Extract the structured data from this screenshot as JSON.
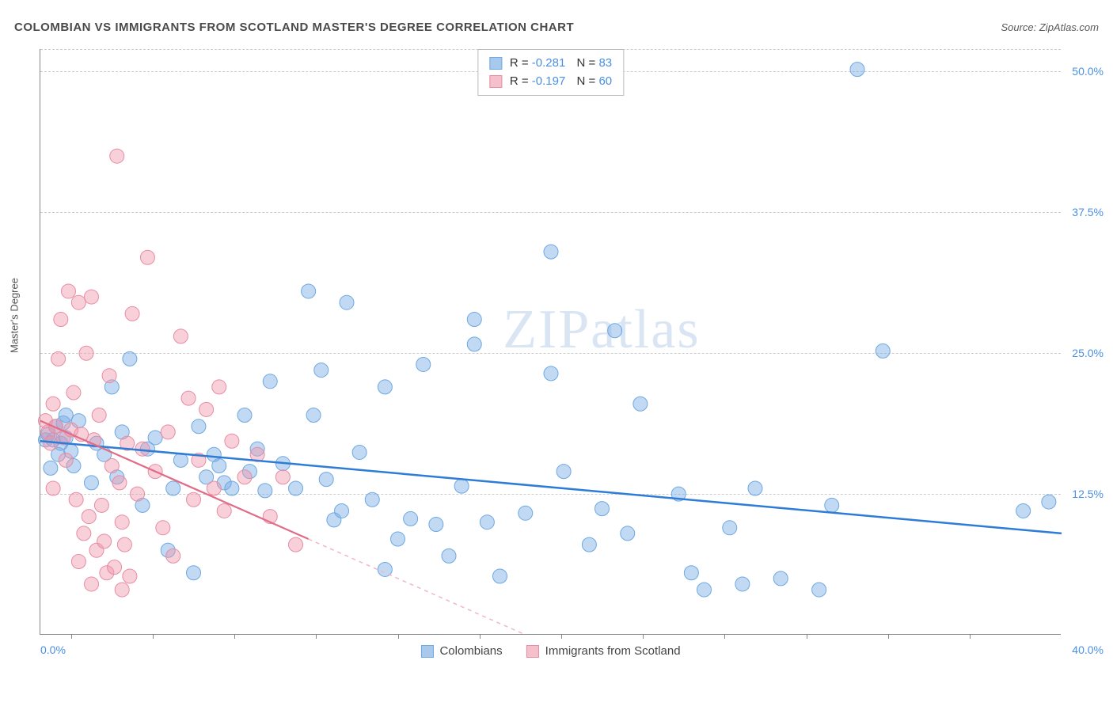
{
  "header": {
    "title": "COLOMBIAN VS IMMIGRANTS FROM SCOTLAND MASTER'S DEGREE CORRELATION CHART",
    "source_prefix": "Source: ",
    "source_name": "ZipAtlas.com"
  },
  "chart": {
    "type": "scatter",
    "ylabel": "Master's Degree",
    "watermark": "ZIPatlas",
    "background_color": "#ffffff",
    "grid_color": "#cccccc",
    "axis_color": "#888888",
    "xlim": [
      0,
      40
    ],
    "ylim": [
      0,
      52
    ],
    "xtick_labels": {
      "left": "0.0%",
      "right": "40.0%"
    },
    "xtick_positions_pct": [
      3,
      11,
      19,
      27,
      35,
      43,
      51,
      59,
      67,
      75,
      83,
      91
    ],
    "yticks": [
      {
        "value": 50.0,
        "label": "50.0%"
      },
      {
        "value": 37.5,
        "label": "37.5%"
      },
      {
        "value": 25.0,
        "label": "25.0%"
      },
      {
        "value": 12.5,
        "label": "12.5%"
      }
    ],
    "series": [
      {
        "key": "colombians",
        "label": "Colombians",
        "color_fill": "rgba(120,170,230,0.45)",
        "color_stroke": "#6ea8e0",
        "marker_radius": 9,
        "trend": {
          "x1": 0,
          "y1": 17.2,
          "x2": 40,
          "y2": 9.0,
          "color": "#2e7cd6",
          "width": 2.5,
          "dash": "none"
        },
        "stats": {
          "R": "-0.281",
          "N": "83"
        },
        "points": [
          [
            0.2,
            17.3
          ],
          [
            0.3,
            17.8
          ],
          [
            0.4,
            14.8
          ],
          [
            0.5,
            17.3
          ],
          [
            0.6,
            18.5
          ],
          [
            0.7,
            16.0
          ],
          [
            0.8,
            17.0
          ],
          [
            0.9,
            18.8
          ],
          [
            1.0,
            17.5
          ],
          [
            1.2,
            16.3
          ],
          [
            1.3,
            15.0
          ],
          [
            1.5,
            19.0
          ],
          [
            2.0,
            13.5
          ],
          [
            2.2,
            17.0
          ],
          [
            2.5,
            16.0
          ],
          [
            2.8,
            22.0
          ],
          [
            3.0,
            14.0
          ],
          [
            3.2,
            18.0
          ],
          [
            3.5,
            24.5
          ],
          [
            4.0,
            11.5
          ],
          [
            4.2,
            16.5
          ],
          [
            4.5,
            17.5
          ],
          [
            5.0,
            7.5
          ],
          [
            5.2,
            13.0
          ],
          [
            5.5,
            15.5
          ],
          [
            6.0,
            5.5
          ],
          [
            6.2,
            18.5
          ],
          [
            6.5,
            14.0
          ],
          [
            6.8,
            16.0
          ],
          [
            7.0,
            15.0
          ],
          [
            7.2,
            13.5
          ],
          [
            7.5,
            13.0
          ],
          [
            8.0,
            19.5
          ],
          [
            8.2,
            14.5
          ],
          [
            8.5,
            16.5
          ],
          [
            8.8,
            12.8
          ],
          [
            9.0,
            22.5
          ],
          [
            9.5,
            15.2
          ],
          [
            10.0,
            13.0
          ],
          [
            10.5,
            30.5
          ],
          [
            10.7,
            19.5
          ],
          [
            11.0,
            23.5
          ],
          [
            11.2,
            13.8
          ],
          [
            11.5,
            10.2
          ],
          [
            12.0,
            29.5
          ],
          [
            12.5,
            16.2
          ],
          [
            13.0,
            12.0
          ],
          [
            13.5,
            5.8
          ],
          [
            14.0,
            8.5
          ],
          [
            14.5,
            10.3
          ],
          [
            15.0,
            24.0
          ],
          [
            15.5,
            9.8
          ],
          [
            16.0,
            7.0
          ],
          [
            16.5,
            13.2
          ],
          [
            17.0,
            25.8
          ],
          [
            17.5,
            10.0
          ],
          [
            18.0,
            5.2
          ],
          [
            19.0,
            10.8
          ],
          [
            20.0,
            23.2
          ],
          [
            20.5,
            14.5
          ],
          [
            21.5,
            8.0
          ],
          [
            22.0,
            11.2
          ],
          [
            22.5,
            27.0
          ],
          [
            23.0,
            9.0
          ],
          [
            23.5,
            20.5
          ],
          [
            25.0,
            12.5
          ],
          [
            25.5,
            5.5
          ],
          [
            26.0,
            4.0
          ],
          [
            27.0,
            9.5
          ],
          [
            27.5,
            4.5
          ],
          [
            28.0,
            13.0
          ],
          [
            29.0,
            5.0
          ],
          [
            30.5,
            4.0
          ],
          [
            31.0,
            11.5
          ],
          [
            32.0,
            50.2
          ],
          [
            33.0,
            25.2
          ],
          [
            38.5,
            11.0
          ],
          [
            39.5,
            11.8
          ],
          [
            20.0,
            34.0
          ],
          [
            17.0,
            28.0
          ],
          [
            13.5,
            22.0
          ],
          [
            11.8,
            11.0
          ],
          [
            1.0,
            19.5
          ]
        ]
      },
      {
        "key": "scotland",
        "label": "Immigrants from Scotland",
        "color_fill": "rgba(240,150,170,0.45)",
        "color_stroke": "#e88ca3",
        "marker_radius": 9,
        "trend_solid": {
          "x1": 0,
          "y1": 19.0,
          "x2": 10.5,
          "y2": 8.5,
          "color": "#e26b87",
          "width": 2.2
        },
        "trend_dash": {
          "x1": 10.5,
          "y1": 8.5,
          "x2": 19.0,
          "y2": 0.0,
          "color": "#f0b8c4",
          "width": 1.5
        },
        "stats": {
          "R": "-0.197",
          "N": "60"
        },
        "points": [
          [
            0.2,
            19.0
          ],
          [
            0.3,
            18.0
          ],
          [
            0.4,
            17.0
          ],
          [
            0.5,
            20.5
          ],
          [
            0.6,
            18.5
          ],
          [
            0.7,
            24.5
          ],
          [
            0.8,
            28.0
          ],
          [
            0.9,
            17.5
          ],
          [
            1.0,
            15.5
          ],
          [
            1.1,
            30.5
          ],
          [
            1.2,
            18.2
          ],
          [
            1.3,
            21.5
          ],
          [
            1.4,
            12.0
          ],
          [
            1.5,
            29.5
          ],
          [
            1.6,
            17.8
          ],
          [
            1.7,
            9.0
          ],
          [
            1.8,
            25.0
          ],
          [
            1.9,
            10.5
          ],
          [
            2.0,
            30.0
          ],
          [
            2.1,
            17.3
          ],
          [
            2.2,
            7.5
          ],
          [
            2.3,
            19.5
          ],
          [
            2.4,
            11.5
          ],
          [
            2.5,
            8.3
          ],
          [
            2.6,
            5.5
          ],
          [
            2.7,
            23.0
          ],
          [
            2.8,
            15.0
          ],
          [
            2.9,
            6.0
          ],
          [
            3.0,
            42.5
          ],
          [
            3.1,
            13.5
          ],
          [
            3.2,
            10.0
          ],
          [
            3.3,
            8.0
          ],
          [
            3.4,
            17.0
          ],
          [
            3.5,
            5.2
          ],
          [
            3.6,
            28.5
          ],
          [
            3.8,
            12.5
          ],
          [
            4.0,
            16.5
          ],
          [
            4.2,
            33.5
          ],
          [
            4.5,
            14.5
          ],
          [
            4.8,
            9.5
          ],
          [
            5.0,
            18.0
          ],
          [
            5.2,
            7.0
          ],
          [
            5.5,
            26.5
          ],
          [
            5.8,
            21.0
          ],
          [
            6.0,
            12.0
          ],
          [
            6.2,
            15.5
          ],
          [
            6.5,
            20.0
          ],
          [
            6.8,
            13.0
          ],
          [
            7.0,
            22.0
          ],
          [
            7.2,
            11.0
          ],
          [
            7.5,
            17.2
          ],
          [
            8.0,
            14.0
          ],
          [
            8.5,
            16.0
          ],
          [
            9.0,
            10.5
          ],
          [
            9.5,
            14.0
          ],
          [
            10.0,
            8.0
          ],
          [
            2.0,
            4.5
          ],
          [
            3.2,
            4.0
          ],
          [
            1.5,
            6.5
          ],
          [
            0.5,
            13.0
          ]
        ]
      }
    ],
    "legend_swatch": {
      "blue_fill": "#a8c8ec",
      "blue_stroke": "#6ea8e0",
      "pink_fill": "#f5c0cc",
      "pink_stroke": "#e88ca3"
    }
  }
}
